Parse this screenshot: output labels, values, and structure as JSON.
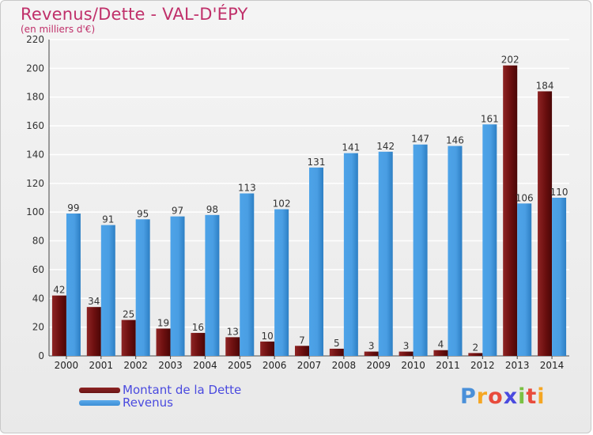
{
  "title": "Revenus/Dette - VAL-D'ÉPY",
  "subtitle": "(en milliers d'€)",
  "logo": {
    "letters": [
      "P",
      "r",
      "o",
      "x",
      "i",
      "t",
      "i"
    ],
    "colors": [
      "#4a90d9",
      "#f5a623",
      "#e84b3c",
      "#4a4adf",
      "#7ac143",
      "#e84b3c",
      "#f5a623"
    ]
  },
  "colors": {
    "dette": "#7a1a1a",
    "revenus": "#3d8fd6"
  },
  "legend": [
    {
      "label": "Montant de la Dette",
      "color": "#6b1414"
    },
    {
      "label": "Revenus",
      "color": "#3d8fd6"
    }
  ],
  "chart_data": {
    "type": "bar",
    "title": "Revenus/Dette - VAL-D'ÉPY",
    "subtitle": "(en milliers d'€)",
    "categories": [
      "2000",
      "2001",
      "2002",
      "2003",
      "2004",
      "2005",
      "2006",
      "2007",
      "2008",
      "2009",
      "2010",
      "2011",
      "2012",
      "2013",
      "2014"
    ],
    "series": [
      {
        "name": "Montant de la Dette",
        "values": [
          42,
          34,
          25,
          19,
          16,
          13,
          10,
          7,
          5,
          3,
          3,
          4,
          2,
          202,
          184
        ]
      },
      {
        "name": "Revenus",
        "values": [
          99,
          91,
          95,
          97,
          98,
          113,
          102,
          131,
          141,
          142,
          147,
          146,
          161,
          106,
          110
        ]
      }
    ],
    "yticks": [
      0,
      20,
      40,
      60,
      80,
      100,
      120,
      140,
      160,
      180,
      200,
      220
    ],
    "ylim": [
      0,
      220
    ],
    "grid": true,
    "legend_position": "bottom-left"
  }
}
